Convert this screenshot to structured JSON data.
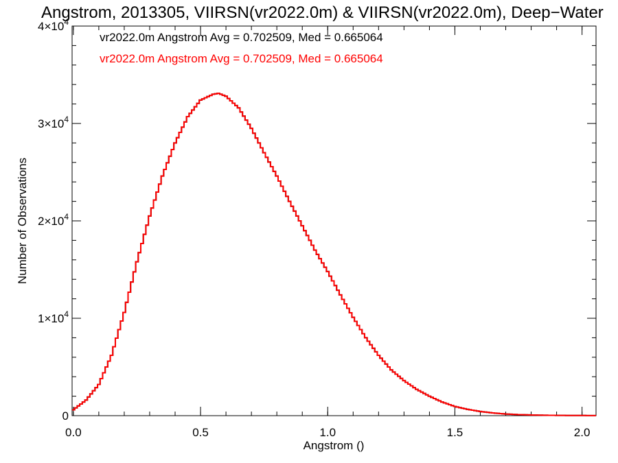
{
  "chart_data": {
    "type": "line",
    "title": "Angstrom, 2013305, VIIRSN(vr2022.0m) & VIIRSN(vr2022.0m), Deep−Water",
    "xlabel": "Angstrom ()",
    "ylabel": "Number of Observations",
    "xlim": [
      -0.005,
      2.055
    ],
    "ylim": [
      0,
      40000
    ],
    "x_ticks": [
      {
        "value": 0.0,
        "label": "0.0"
      },
      {
        "value": 0.5,
        "label": "0.5"
      },
      {
        "value": 1.0,
        "label": "1.0"
      },
      {
        "value": 1.5,
        "label": "1.5"
      },
      {
        "value": 2.0,
        "label": "2.0"
      }
    ],
    "y_ticks": [
      {
        "value": 0,
        "base": "0",
        "exp": ""
      },
      {
        "value": 10000,
        "base": "1×10",
        "exp": "4"
      },
      {
        "value": 20000,
        "base": "2×10",
        "exp": "4"
      },
      {
        "value": 30000,
        "base": "3×10",
        "exp": "4"
      },
      {
        "value": 40000,
        "base": "4×10",
        "exp": "4"
      }
    ],
    "x_minor_step": 0.1,
    "y_minor_step": 2000,
    "annotations": [
      {
        "text": "vr2022.0m Angstrom Avg = 0.702509, Med = 0.665064",
        "color": "#000000"
      },
      {
        "text": "vr2022.0m Angstrom Avg = 0.702509, Med = 0.665064",
        "color": "#ff0000"
      }
    ],
    "bin_width": 0.01,
    "series": [
      {
        "color": "#000000",
        "style": "step",
        "x": [
          0.0,
          0.05,
          0.1,
          0.15,
          0.2,
          0.25,
          0.3,
          0.35,
          0.4,
          0.45,
          0.5,
          0.55,
          0.57,
          0.6,
          0.65,
          0.7,
          0.75,
          0.8,
          0.85,
          0.9,
          0.95,
          1.0,
          1.05,
          1.1,
          1.15,
          1.2,
          1.25,
          1.3,
          1.35,
          1.4,
          1.45,
          1.5,
          1.55,
          1.6,
          1.65,
          1.7,
          1.75,
          1.8,
          1.85,
          1.9,
          1.95,
          2.0,
          2.05
        ],
        "values": [
          600,
          1600,
          3200,
          6200,
          10600,
          15800,
          20500,
          24600,
          28000,
          30700,
          32400,
          33000,
          33100,
          32800,
          31600,
          29500,
          27000,
          24600,
          22000,
          19500,
          17000,
          14800,
          12400,
          10100,
          8000,
          6200,
          4700,
          3600,
          2700,
          2000,
          1400,
          950,
          650,
          430,
          280,
          170,
          110,
          70,
          45,
          30,
          20,
          15,
          10
        ]
      },
      {
        "color": "#ff0000",
        "style": "step",
        "x": [
          0.0,
          0.05,
          0.1,
          0.15,
          0.2,
          0.25,
          0.3,
          0.35,
          0.4,
          0.45,
          0.5,
          0.55,
          0.57,
          0.6,
          0.65,
          0.7,
          0.75,
          0.8,
          0.85,
          0.9,
          0.95,
          1.0,
          1.05,
          1.1,
          1.15,
          1.2,
          1.25,
          1.3,
          1.35,
          1.4,
          1.45,
          1.5,
          1.55,
          1.6,
          1.65,
          1.7,
          1.75,
          1.8,
          1.85,
          1.9,
          1.95,
          2.0,
          2.05
        ],
        "values": [
          600,
          1600,
          3200,
          6200,
          10600,
          15800,
          20500,
          24600,
          28000,
          30700,
          32400,
          33000,
          33100,
          32800,
          31600,
          29500,
          27000,
          24600,
          22000,
          19500,
          17000,
          14800,
          12400,
          10100,
          8000,
          6200,
          4700,
          3600,
          2700,
          2000,
          1400,
          950,
          650,
          430,
          280,
          170,
          110,
          70,
          45,
          30,
          20,
          15,
          10
        ]
      }
    ]
  }
}
